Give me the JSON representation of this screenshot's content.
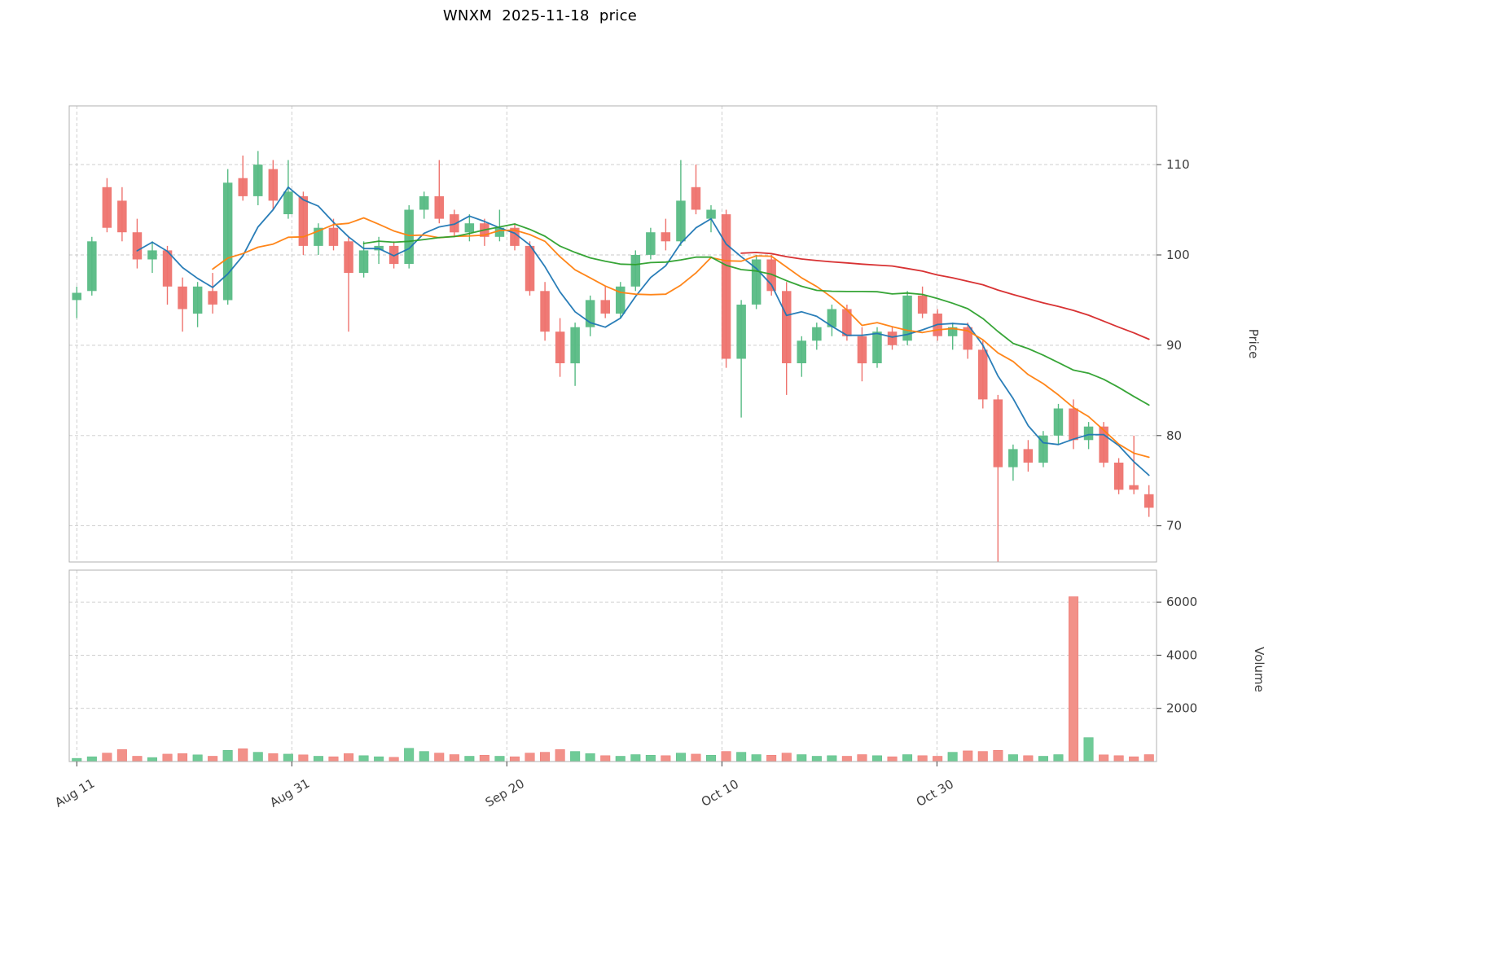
{
  "chart_data": {
    "type": "candlestick",
    "title": "WNXM  2025-11-18  price",
    "symbol": "WNXM",
    "as_of_date": "2025-11-18",
    "price_axis": {
      "label": "Price",
      "ticks": [
        70,
        80,
        90,
        100,
        110
      ],
      "ylim": [
        66,
        116.5
      ]
    },
    "volume_axis": {
      "label": "Volume",
      "ticks": [
        2000,
        4000,
        6000
      ],
      "ylim": [
        0,
        7200
      ]
    },
    "x_axis": {
      "ticks": [
        {
          "pos": 0,
          "label": "Aug 11"
        },
        {
          "pos": 14.24,
          "label": "Aug 31"
        },
        {
          "pos": 28.48,
          "label": "Sep 20"
        },
        {
          "pos": 42.72,
          "label": "Oct 10"
        },
        {
          "pos": 56.96,
          "label": "Oct 30"
        }
      ]
    },
    "moving_averages": {
      "windows": [
        5,
        10,
        20,
        45
      ],
      "colors": [
        "#1f77b4",
        "#ff7f0e",
        "#2ca02c",
        "#d62728"
      ]
    },
    "colors": {
      "up": "#57bb84",
      "down": "#ee736e",
      "up_volume": "#6fcb97",
      "down_volume": "#f29189",
      "grid": "#c9c9c9",
      "spine": "#b0b0b0",
      "tick_text": "#3d3d3d",
      "title_text": "#000000"
    },
    "grid": true,
    "legend": "none",
    "candles": [
      {
        "d": "2025-08-11",
        "o": 95.0,
        "h": 96.5,
        "l": 93.0,
        "c": 95.8,
        "v": 120
      },
      {
        "d": "2025-08-12",
        "o": 96.0,
        "h": 102.0,
        "l": 95.5,
        "c": 101.5,
        "v": 180
      },
      {
        "d": "2025-08-13",
        "o": 107.5,
        "h": 108.5,
        "l": 102.5,
        "c": 103.0,
        "v": 320
      },
      {
        "d": "2025-08-14",
        "o": 106.0,
        "h": 107.5,
        "l": 101.5,
        "c": 102.5,
        "v": 450
      },
      {
        "d": "2025-08-15",
        "o": 102.5,
        "h": 104.0,
        "l": 98.5,
        "c": 99.5,
        "v": 200
      },
      {
        "d": "2025-08-18",
        "o": 99.5,
        "h": 101.5,
        "l": 98.0,
        "c": 100.5,
        "v": 150
      },
      {
        "d": "2025-08-19",
        "o": 100.5,
        "h": 101.0,
        "l": 94.5,
        "c": 96.5,
        "v": 280
      },
      {
        "d": "2025-08-20",
        "o": 96.5,
        "h": 97.5,
        "l": 91.5,
        "c": 94.0,
        "v": 300
      },
      {
        "d": "2025-08-21",
        "o": 93.5,
        "h": 97.0,
        "l": 92.0,
        "c": 96.5,
        "v": 250
      },
      {
        "d": "2025-08-22",
        "o": 96.0,
        "h": 98.0,
        "l": 93.5,
        "c": 94.5,
        "v": 200
      },
      {
        "d": "2025-08-25",
        "o": 95.0,
        "h": 109.5,
        "l": 94.5,
        "c": 108.0,
        "v": 420
      },
      {
        "d": "2025-08-26",
        "o": 108.5,
        "h": 111.0,
        "l": 106.0,
        "c": 106.5,
        "v": 480
      },
      {
        "d": "2025-08-27",
        "o": 106.5,
        "h": 111.5,
        "l": 105.5,
        "c": 110.0,
        "v": 350
      },
      {
        "d": "2025-08-28",
        "o": 109.5,
        "h": 110.5,
        "l": 105.0,
        "c": 106.0,
        "v": 300
      },
      {
        "d": "2025-08-29",
        "o": 104.5,
        "h": 110.5,
        "l": 104.0,
        "c": 107.0,
        "v": 280
      },
      {
        "d": "2025-09-01",
        "o": 106.5,
        "h": 107.0,
        "l": 100.0,
        "c": 101.0,
        "v": 250
      },
      {
        "d": "2025-09-02",
        "o": 101.0,
        "h": 103.5,
        "l": 100.0,
        "c": 103.0,
        "v": 200
      },
      {
        "d": "2025-09-03",
        "o": 103.0,
        "h": 104.0,
        "l": 100.5,
        "c": 101.0,
        "v": 180
      },
      {
        "d": "2025-09-04",
        "o": 101.5,
        "h": 102.0,
        "l": 91.5,
        "c": 98.0,
        "v": 300
      },
      {
        "d": "2025-09-05",
        "o": 98.0,
        "h": 101.5,
        "l": 97.5,
        "c": 100.5,
        "v": 220
      },
      {
        "d": "2025-09-08",
        "o": 100.5,
        "h": 102.0,
        "l": 99.0,
        "c": 101.0,
        "v": 180
      },
      {
        "d": "2025-09-09",
        "o": 101.0,
        "h": 101.5,
        "l": 98.5,
        "c": 99.0,
        "v": 160
      },
      {
        "d": "2025-09-10",
        "o": 99.0,
        "h": 105.5,
        "l": 98.5,
        "c": 105.0,
        "v": 500
      },
      {
        "d": "2025-09-11",
        "o": 105.0,
        "h": 107.0,
        "l": 104.0,
        "c": 106.5,
        "v": 380
      },
      {
        "d": "2025-09-12",
        "o": 106.5,
        "h": 110.5,
        "l": 103.5,
        "c": 104.0,
        "v": 320
      },
      {
        "d": "2025-09-15",
        "o": 104.5,
        "h": 105.0,
        "l": 102.0,
        "c": 102.5,
        "v": 260
      },
      {
        "d": "2025-09-16",
        "o": 102.5,
        "h": 104.5,
        "l": 101.5,
        "c": 103.5,
        "v": 200
      },
      {
        "d": "2025-09-17",
        "o": 103.5,
        "h": 104.0,
        "l": 101.0,
        "c": 102.0,
        "v": 240
      },
      {
        "d": "2025-09-18",
        "o": 102.0,
        "h": 105.0,
        "l": 101.5,
        "c": 103.0,
        "v": 200
      },
      {
        "d": "2025-09-19",
        "o": 103.0,
        "h": 103.5,
        "l": 100.5,
        "c": 101.0,
        "v": 180
      },
      {
        "d": "2025-09-22",
        "o": 101.0,
        "h": 101.5,
        "l": 95.5,
        "c": 96.0,
        "v": 320
      },
      {
        "d": "2025-09-23",
        "o": 96.0,
        "h": 97.0,
        "l": 90.5,
        "c": 91.5,
        "v": 350
      },
      {
        "d": "2025-09-24",
        "o": 91.5,
        "h": 93.0,
        "l": 86.5,
        "c": 88.0,
        "v": 450
      },
      {
        "d": "2025-09-25",
        "o": 88.0,
        "h": 92.5,
        "l": 85.5,
        "c": 92.0,
        "v": 380
      },
      {
        "d": "2025-09-26",
        "o": 92.0,
        "h": 95.5,
        "l": 91.0,
        "c": 95.0,
        "v": 300
      },
      {
        "d": "2025-09-29",
        "o": 95.0,
        "h": 96.5,
        "l": 93.0,
        "c": 93.5,
        "v": 220
      },
      {
        "d": "2025-09-30",
        "o": 93.5,
        "h": 97.0,
        "l": 93.0,
        "c": 96.5,
        "v": 200
      },
      {
        "d": "2025-10-01",
        "o": 96.5,
        "h": 100.5,
        "l": 96.0,
        "c": 100.0,
        "v": 260
      },
      {
        "d": "2025-10-02",
        "o": 100.0,
        "h": 103.0,
        "l": 99.5,
        "c": 102.5,
        "v": 240
      },
      {
        "d": "2025-10-03",
        "o": 102.5,
        "h": 104.0,
        "l": 100.5,
        "c": 101.5,
        "v": 220
      },
      {
        "d": "2025-10-06",
        "o": 101.5,
        "h": 110.5,
        "l": 101.0,
        "c": 106.0,
        "v": 320
      },
      {
        "d": "2025-10-07",
        "o": 107.5,
        "h": 110.0,
        "l": 104.5,
        "c": 105.0,
        "v": 280
      },
      {
        "d": "2025-10-08",
        "o": 104.0,
        "h": 105.5,
        "l": 102.5,
        "c": 105.0,
        "v": 240
      },
      {
        "d": "2025-10-09",
        "o": 104.5,
        "h": 105.0,
        "l": 87.5,
        "c": 88.5,
        "v": 380
      },
      {
        "d": "2025-10-10",
        "o": 88.5,
        "h": 95.0,
        "l": 82.0,
        "c": 94.5,
        "v": 350
      },
      {
        "d": "2025-10-13",
        "o": 94.5,
        "h": 100.0,
        "l": 94.0,
        "c": 99.5,
        "v": 260
      },
      {
        "d": "2025-10-14",
        "o": 99.5,
        "h": 100.0,
        "l": 95.5,
        "c": 96.0,
        "v": 240
      },
      {
        "d": "2025-10-15",
        "o": 96.0,
        "h": 97.0,
        "l": 84.5,
        "c": 88.0,
        "v": 320
      },
      {
        "d": "2025-10-16",
        "o": 88.0,
        "h": 91.0,
        "l": 86.5,
        "c": 90.5,
        "v": 260
      },
      {
        "d": "2025-10-17",
        "o": 90.5,
        "h": 92.5,
        "l": 89.5,
        "c": 92.0,
        "v": 200
      },
      {
        "d": "2025-10-20",
        "o": 92.0,
        "h": 94.5,
        "l": 91.0,
        "c": 94.0,
        "v": 220
      },
      {
        "d": "2025-10-21",
        "o": 94.0,
        "h": 94.5,
        "l": 90.5,
        "c": 91.0,
        "v": 200
      },
      {
        "d": "2025-10-22",
        "o": 91.0,
        "h": 92.0,
        "l": 86.0,
        "c": 88.0,
        "v": 260
      },
      {
        "d": "2025-10-23",
        "o": 88.0,
        "h": 92.0,
        "l": 87.5,
        "c": 91.5,
        "v": 220
      },
      {
        "d": "2025-10-24",
        "o": 91.5,
        "h": 92.0,
        "l": 89.5,
        "c": 90.0,
        "v": 180
      },
      {
        "d": "2025-10-27",
        "o": 90.5,
        "h": 96.0,
        "l": 90.0,
        "c": 95.5,
        "v": 260
      },
      {
        "d": "2025-10-28",
        "o": 95.5,
        "h": 96.5,
        "l": 93.0,
        "c": 93.5,
        "v": 220
      },
      {
        "d": "2025-10-29",
        "o": 93.5,
        "h": 94.0,
        "l": 90.5,
        "c": 91.0,
        "v": 200
      },
      {
        "d": "2025-10-30",
        "o": 91.0,
        "h": 92.5,
        "l": 89.5,
        "c": 92.0,
        "v": 350
      },
      {
        "d": "2025-10-31",
        "o": 92.0,
        "h": 92.5,
        "l": 88.5,
        "c": 89.5,
        "v": 400
      },
      {
        "d": "2025-11-03",
        "o": 89.5,
        "h": 90.5,
        "l": 83.0,
        "c": 84.0,
        "v": 380
      },
      {
        "d": "2025-11-04",
        "o": 84.0,
        "h": 84.5,
        "l": 66.0,
        "c": 76.5,
        "v": 420
      },
      {
        "d": "2025-11-05",
        "o": 76.5,
        "h": 79.0,
        "l": 75.0,
        "c": 78.5,
        "v": 260
      },
      {
        "d": "2025-11-06",
        "o": 78.5,
        "h": 79.5,
        "l": 76.0,
        "c": 77.0,
        "v": 220
      },
      {
        "d": "2025-11-07",
        "o": 77.0,
        "h": 80.5,
        "l": 76.5,
        "c": 80.0,
        "v": 200
      },
      {
        "d": "2025-11-10",
        "o": 80.0,
        "h": 83.5,
        "l": 79.0,
        "c": 83.0,
        "v": 260
      },
      {
        "d": "2025-11-11",
        "o": 83.0,
        "h": 84.0,
        "l": 78.5,
        "c": 79.5,
        "v": 6200
      },
      {
        "d": "2025-11-12",
        "o": 79.5,
        "h": 81.5,
        "l": 78.5,
        "c": 81.0,
        "v": 900
      },
      {
        "d": "2025-11-13",
        "o": 81.0,
        "h": 81.5,
        "l": 76.5,
        "c": 77.0,
        "v": 250
      },
      {
        "d": "2025-11-14",
        "o": 77.0,
        "h": 77.5,
        "l": 73.5,
        "c": 74.0,
        "v": 220
      },
      {
        "d": "2025-11-17",
        "o": 74.5,
        "h": 80.0,
        "l": 73.5,
        "c": 74.0,
        "v": 180
      },
      {
        "d": "2025-11-18",
        "o": 73.5,
        "h": 74.5,
        "l": 71.0,
        "c": 72.0,
        "v": 260
      }
    ]
  }
}
